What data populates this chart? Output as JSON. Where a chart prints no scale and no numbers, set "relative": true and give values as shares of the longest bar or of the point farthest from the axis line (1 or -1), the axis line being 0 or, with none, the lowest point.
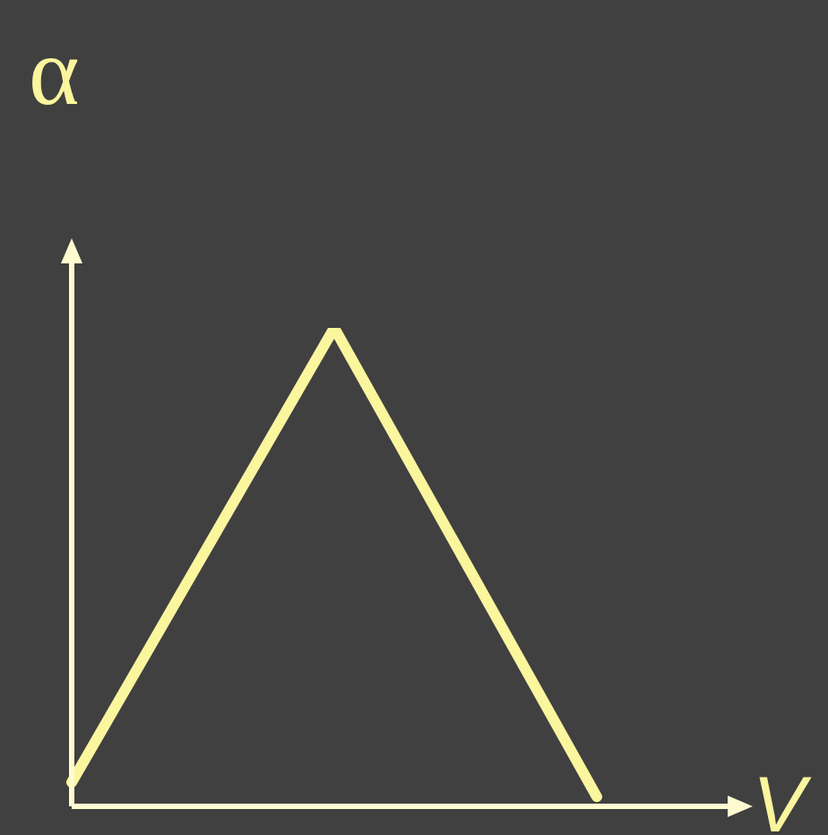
{
  "chart_data": {
    "type": "line",
    "relative": true,
    "ylabel": "α",
    "xlabel": "V",
    "categories": [
      null,
      null,
      null
    ],
    "series": [
      {
        "color": "#fbf59e",
        "values": [
          0.05,
          1,
          0.02
        ]
      }
    ],
    "marker": "none",
    "line_style": "solid",
    "legend": false
  }
}
